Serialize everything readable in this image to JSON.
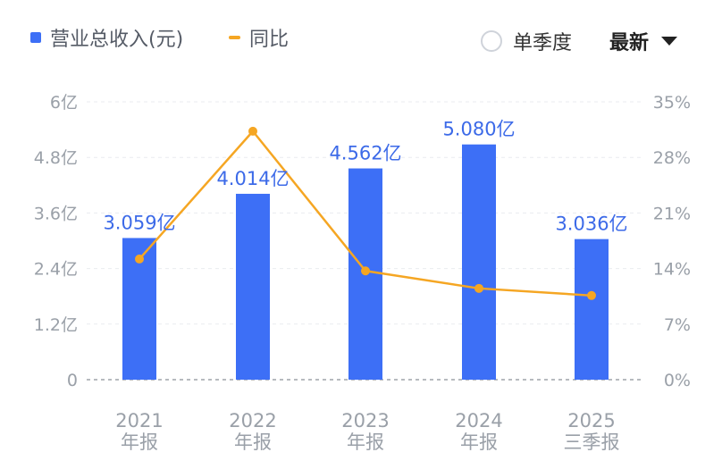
{
  "legend": {
    "revenue_label": "营业总收入(元)",
    "yoy_label": "同比",
    "quarterly_label": "单季度",
    "sort_label": "最新"
  },
  "colors": {
    "bar": "#3d6ff6",
    "line": "#f5a623",
    "label_blue": "#3c6ae8",
    "axis_text": "#9aa0a8",
    "grid": "#e9ebef"
  },
  "chart_data": {
    "type": "bar",
    "categories": [
      {
        "line1": "2021",
        "line2": "年报"
      },
      {
        "line1": "2022",
        "line2": "年报"
      },
      {
        "line1": "2023",
        "line2": "年报"
      },
      {
        "line1": "2024",
        "line2": "年报"
      },
      {
        "line1": "2025",
        "line2": "三季报"
      }
    ],
    "series": [
      {
        "name": "营业总收入(元)",
        "type": "bar",
        "axis": "left",
        "values": [
          3.059,
          4.014,
          4.562,
          5.08,
          3.036
        ],
        "labels": [
          "3.059亿",
          "4.014亿",
          "4.562亿",
          "5.080亿",
          "3.036亿"
        ]
      },
      {
        "name": "同比",
        "type": "line",
        "axis": "right",
        "values": [
          15.2,
          31.3,
          13.7,
          11.5,
          10.6
        ]
      }
    ],
    "left_axis": {
      "ylim": [
        0,
        6
      ],
      "ticks": [
        0,
        1.2,
        2.4,
        3.6,
        4.8,
        6
      ],
      "tick_labels": [
        "0",
        "1.2亿",
        "2.4亿",
        "3.6亿",
        "4.8亿",
        "6亿"
      ]
    },
    "right_axis": {
      "ylim": [
        0,
        35
      ],
      "ticks": [
        0,
        7,
        14,
        21,
        28,
        35
      ],
      "tick_labels": [
        "0%",
        "7%",
        "14%",
        "21%",
        "28%",
        "35%"
      ]
    },
    "grid": true
  }
}
